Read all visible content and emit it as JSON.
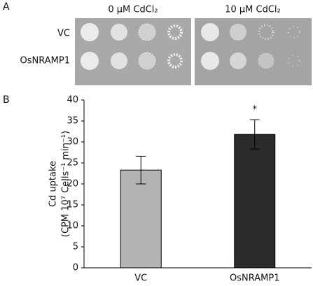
{
  "panel_a": {
    "label": "A",
    "columns": [
      "0 μM CdCl₂",
      "10 μM CdCl₂"
    ],
    "rows": [
      "VC",
      "OsNRAMP1"
    ]
  },
  "chart_data": {
    "type": "bar",
    "panel_label": "B",
    "y_label": [
      "Cd uptake",
      "(CPM 10⁷ Cells⁻¹ min⁻¹)"
    ],
    "categories": [
      "VC",
      "OsNRAMP1"
    ],
    "values": [
      23.3,
      31.8
    ],
    "errors": [
      3.3,
      3.5
    ],
    "colors": [
      "#b3b3b3",
      "#2b2b2b"
    ],
    "annotations": [
      null,
      "*"
    ],
    "ylim": [
      0,
      40
    ],
    "yticks": [
      0,
      5,
      10,
      15,
      20,
      25,
      30,
      35,
      40
    ]
  }
}
